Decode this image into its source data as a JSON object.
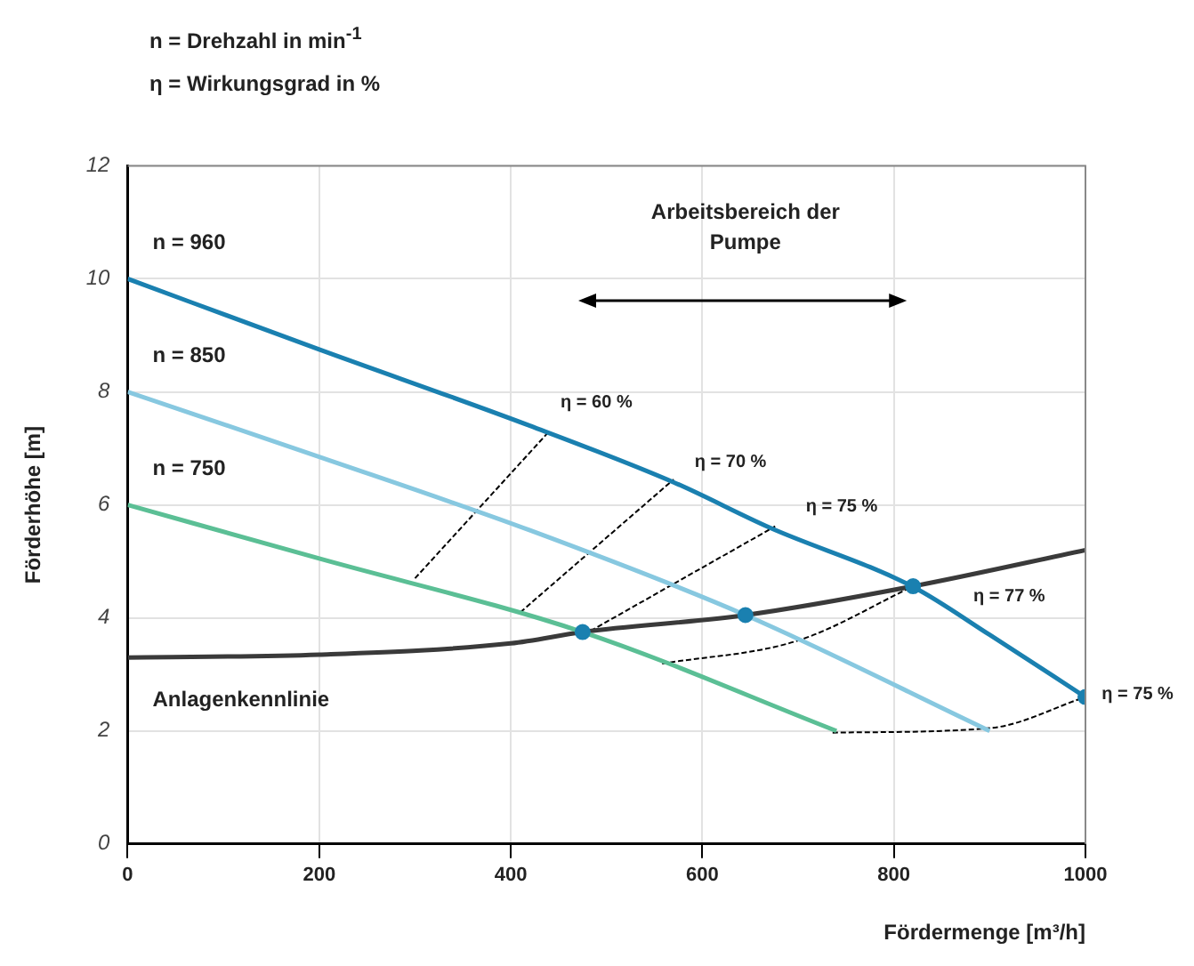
{
  "chart_data": {
    "type": "line",
    "title": "n = Drehzahl in min$^{-1}$",
    "subtitle": "η = Wirkungsgrad in %",
    "xlabel": "Fördermenge [m³/h]",
    "ylabel": "Förderhöhe [m]",
    "xlim": [
      0,
      1000
    ],
    "xticks": [
      0,
      200,
      400,
      600,
      800,
      1000
    ],
    "ylim": [
      0,
      12
    ],
    "yticks": [
      0,
      2,
      4,
      6,
      8,
      10,
      12
    ],
    "grid": true,
    "legend": false,
    "series": [
      {
        "name": "n = 960",
        "color": "#1a80b0",
        "x": [
          0,
          200,
          420,
          570,
          670,
          820,
          900,
          1000
        ],
        "values": [
          10,
          8.75,
          7.4,
          6.4,
          5.6,
          4.55,
          3.7,
          2.6
        ]
      },
      {
        "name": "n = 850",
        "color": "#87c8e0",
        "x": [
          0,
          200,
          420,
          645,
          900
        ],
        "values": [
          8,
          6.85,
          5.55,
          4.05,
          2.0
        ]
      },
      {
        "name": "n = 750",
        "color": "#5bbf95",
        "x": [
          0,
          200,
          475,
          740
        ],
        "values": [
          6,
          5.05,
          3.75,
          2.0
        ]
      },
      {
        "name": "Anlagenkennlinie",
        "color": "#3a3a3a",
        "x": [
          0,
          200,
          400,
          475,
          645,
          820,
          1000
        ],
        "values": [
          3.3,
          3.35,
          3.55,
          3.75,
          4.05,
          4.56,
          5.2
        ]
      },
      {
        "type": "line",
        "line_style": "dashed",
        "color": "#000000",
        "x": [
          300,
          440
        ],
        "values": [
          4.7,
          7.3
        ]
      },
      {
        "type": "line",
        "line_style": "dashed",
        "color": "#000000",
        "x": [
          410,
          570
        ],
        "values": [
          4.1,
          6.45
        ]
      },
      {
        "type": "line",
        "line_style": "dashed",
        "color": "#000000",
        "x": [
          476,
          676
        ],
        "values": [
          3.7,
          5.62
        ]
      },
      {
        "type": "line",
        "line_style": "dashed",
        "color": "#000000",
        "x": [
          558,
          700,
          820
        ],
        "values": [
          3.19,
          3.6,
          4.56
        ]
      },
      {
        "type": "line",
        "line_style": "dashed",
        "color": "#000000",
        "x": [
          736,
          900,
          1000
        ],
        "values": [
          1.97,
          2.05,
          2.6
        ]
      },
      {
        "type": "scatter",
        "color": "#1a80b0",
        "x": [
          475,
          645,
          820,
          1000
        ],
        "values": [
          3.75,
          4.05,
          4.56,
          2.6
        ]
      }
    ],
    "annotations": [
      "Arbeitsbereich der Pumpe",
      "η = 60 %",
      "η = 70 %",
      "η = 75 %",
      "η = 77 %",
      "η = 75 %"
    ]
  }
}
